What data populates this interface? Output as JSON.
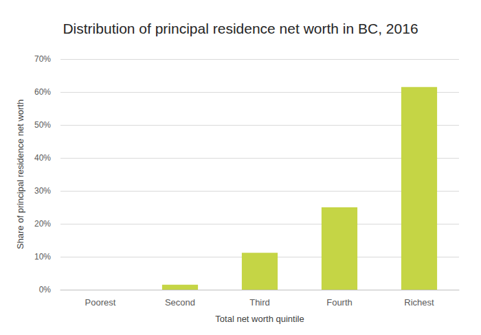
{
  "chart_data": {
    "type": "bar",
    "title": "Distribution of principal residence net worth in BC, 2016",
    "x_label": "Total net worth quintile",
    "y_label": "Share of principal residence net worth",
    "categories": [
      "Poorest",
      "Second",
      "Third",
      "Fourth",
      "Richest"
    ],
    "values": [
      0,
      1.5,
      11.2,
      25,
      61.5
    ],
    "color": "#c5d545",
    "ylim": [
      0,
      70
    ],
    "yticks": [
      {
        "value": 0,
        "label": "0%"
      },
      {
        "value": 10,
        "label": "10%"
      },
      {
        "value": 20,
        "label": "20%"
      },
      {
        "value": 30,
        "label": "30%"
      },
      {
        "value": 40,
        "label": "40%"
      },
      {
        "value": 50,
        "label": "50%"
      },
      {
        "value": 60,
        "label": "60%"
      },
      {
        "value": 70,
        "label": "70%"
      }
    ],
    "grid": true
  }
}
